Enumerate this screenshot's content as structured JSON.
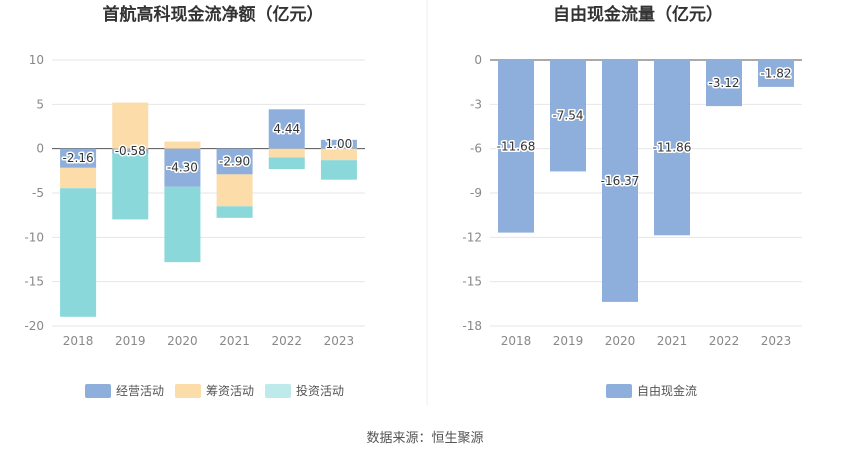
{
  "chart_data": [
    {
      "type": "bar",
      "stacked": true,
      "title": "首航高科现金流净额（亿元）",
      "categories": [
        "2018",
        "2019",
        "2020",
        "2021",
        "2022",
        "2023"
      ],
      "ylim": [
        -20,
        10
      ],
      "yticks": [
        10,
        5,
        0,
        -5,
        -10,
        -15,
        -20
      ],
      "grid": true,
      "series": [
        {
          "name": "经营活动",
          "color": "#8eaedb",
          "values": [
            -2.16,
            -0.58,
            -4.3,
            -2.9,
            4.44,
            1.0
          ],
          "labels": [
            "-2.16",
            "-0.58",
            "-4.30",
            "-2.90",
            "4.44",
            "1.00"
          ]
        },
        {
          "name": "筹资活动",
          "color": "#fcdca8",
          "values": [
            -2.3,
            5.2,
            0.8,
            -3.6,
            -1.0,
            -1.3
          ]
        },
        {
          "name": "投资活动",
          "color": "#8ad8da",
          "values": [
            -14.5,
            -7.4,
            -8.5,
            -1.3,
            -1.3,
            -2.2
          ]
        }
      ],
      "legend": "bottom"
    },
    {
      "type": "bar",
      "title": "自由现金流量（亿元）",
      "categories": [
        "2018",
        "2019",
        "2020",
        "2021",
        "2022",
        "2023"
      ],
      "ylim": [
        -18,
        0
      ],
      "yticks": [
        0,
        -3,
        -6,
        -9,
        -12,
        -15,
        -18
      ],
      "grid": true,
      "series": [
        {
          "name": "自由现金流",
          "color": "#8eaedb",
          "values": [
            -11.68,
            -7.54,
            -16.37,
            -11.86,
            -3.12,
            -1.82
          ],
          "labels": [
            "-11.68",
            "-7.54",
            "-16.37",
            "-11.86",
            "-3.12",
            "-1.82"
          ]
        }
      ],
      "legend": "bottom"
    }
  ],
  "source_text": "数据来源：恒生聚源"
}
